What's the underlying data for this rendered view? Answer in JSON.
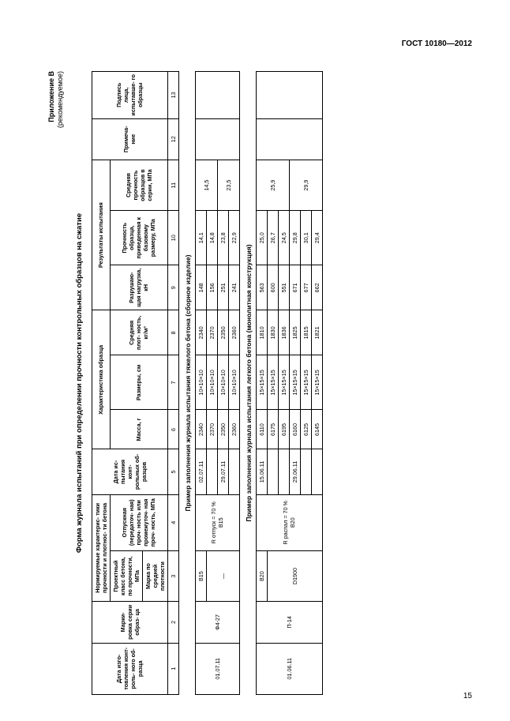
{
  "doc_id": "ГОСТ 10180—2012",
  "page_number": "15",
  "annex_label": "Приложение В",
  "annex_status": "(рекомендуемое)",
  "main_title": "Форма журнала испытаний при определении прочности контрольных образцов на сжатие",
  "headers": {
    "col1": "Дата изго-\nтовления конт-\nроль-\nного об-\nразца",
    "col2": "Марки-\nровка серии образ-\nца",
    "group_norm": "Нормируемые характерис-\nтики прочности и плотнос-\nти бетона",
    "col3": "Проектный класс бетона, по прочности, МПа",
    "col3b": "Марка по средней плотности",
    "col4": "Отпускная (передаточ-\nная) проч-\nность или промежуточ-\nная проч-\nность, МПа",
    "col5": "Дата ис-\nпытания конт-\nрольных об-\nразцов",
    "group_char": "Характеристика образца",
    "col6": "Масса, г",
    "col7": "Размеры, см",
    "col8": "Средняя плот-\nность, кг/м³",
    "group_res": "Результаты испытания",
    "col9": "Разрушаю-\nщая нагрузка, кН",
    "col10": "Прочность образца, приведенная к базовому размеру, МПа",
    "col11": "Средняя прочность образцов в серии, МПа",
    "col12": "Примеча-\nние",
    "col13": "Подпись лица, испытавше-\nго образцы"
  },
  "colnums": [
    "1",
    "2",
    "3",
    "4",
    "5",
    "6",
    "7",
    "8",
    "9",
    "10",
    "11",
    "12",
    "13"
  ],
  "section1_title": "Пример заполнения журнала испытания тяжелого бетона (сборное изделие)",
  "section1": {
    "date_mfg": "01.07.11",
    "mark": "Ф4-27",
    "class": "В15",
    "rel_strength": "R отпуск = 70 % В15",
    "rows": [
      {
        "date": "02.07.11",
        "mass": "2340",
        "size": "10×10×10",
        "dens": "2340",
        "load": "148",
        "str": "14,1",
        "avg": "14,5"
      },
      {
        "date": "",
        "mass": "2370",
        "size": "10×10×10",
        "dens": "2370",
        "load": "156",
        "str": "14,8",
        "avg": ""
      },
      {
        "date": "29.07.11",
        "mass": "2350",
        "size": "10×10×10",
        "dens": "2350",
        "load": "251",
        "str": "23,8",
        "avg": "23,5"
      },
      {
        "date": "",
        "mass": "2360",
        "size": "10×10×10",
        "dens": "2360",
        "load": "241",
        "str": "22,9",
        "avg": ""
      }
    ]
  },
  "section2_title": "Пример заполнения журнала испытания легкого бетона (монолитная конструкция)",
  "section2": {
    "date_mfg": "01.06.11",
    "mark": "П-14",
    "class": "В20",
    "density_mark": "D1900",
    "rel_strength": "R распал = 70 % В20",
    "rows": [
      {
        "date": "15.06.11",
        "mass": "6110",
        "size": "15×15×15",
        "dens": "1810",
        "load": "563",
        "str": "25,0",
        "avg": "25,9"
      },
      {
        "date": "",
        "mass": "6175",
        "size": "15×15×15",
        "dens": "1830",
        "load": "600",
        "str": "26,7",
        "avg": ""
      },
      {
        "date": "",
        "mass": "6195",
        "size": "15×15×15",
        "dens": "1836",
        "load": "551",
        "str": "24,5",
        "avg": ""
      },
      {
        "date": "29.06.11",
        "mass": "6160",
        "size": "15×15×15",
        "dens": "1825",
        "load": "671",
        "str": "29,8",
        "avg": "29,9"
      },
      {
        "date": "",
        "mass": "6125",
        "size": "15×15×15",
        "dens": "1815",
        "load": "677",
        "str": "30,1",
        "avg": ""
      },
      {
        "date": "",
        "mass": "6145",
        "size": "15×15×15",
        "dens": "1821",
        "load": "662",
        "str": "29,4",
        "avg": ""
      }
    ]
  }
}
